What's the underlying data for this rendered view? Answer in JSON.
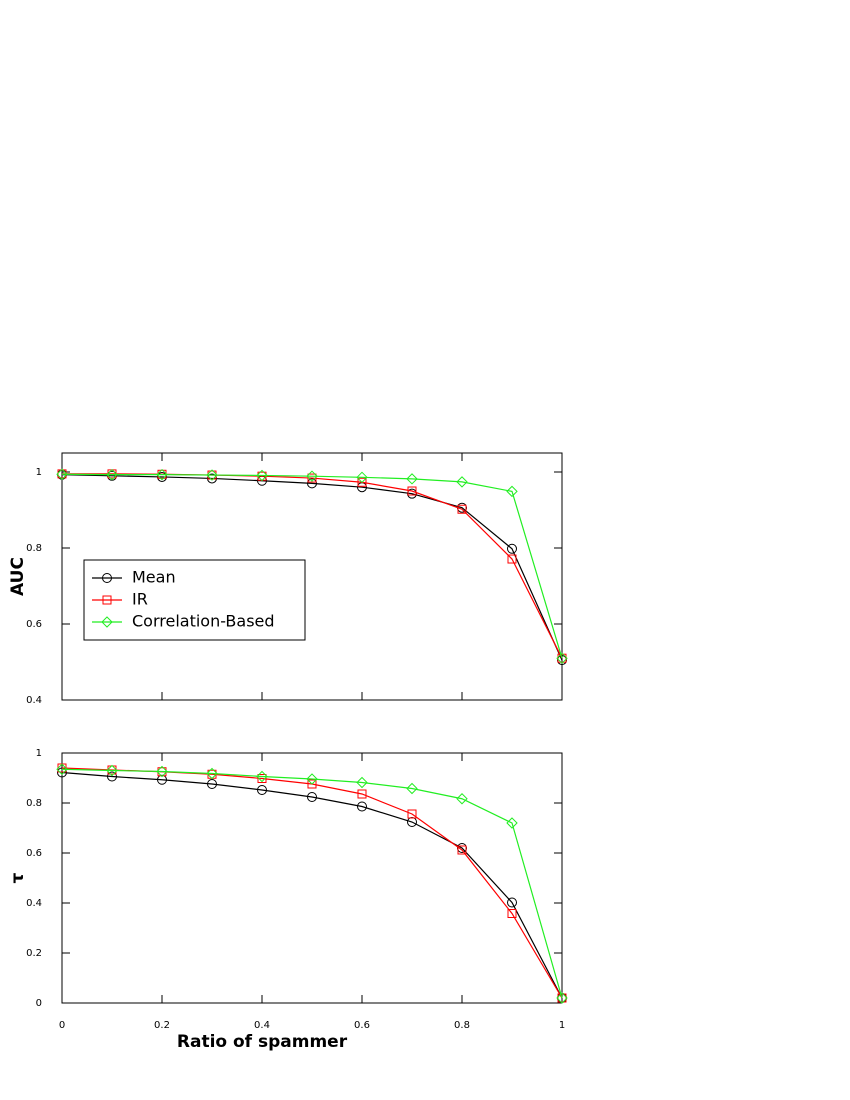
{
  "chart_data": [
    {
      "type": "line",
      "ylabel": "AUC",
      "x": [
        0,
        0.1,
        0.2,
        0.3,
        0.4,
        0.5,
        0.6,
        0.7,
        0.8,
        0.9,
        1
      ],
      "series": [
        {
          "name": "Mean",
          "color": "#000000",
          "marker": "circle",
          "values": [
            0.993,
            0.99,
            0.987,
            0.983,
            0.977,
            0.97,
            0.96,
            0.943,
            0.906,
            0.798,
            0.505
          ]
        },
        {
          "name": "IR",
          "color": "#ff0000",
          "marker": "square",
          "values": [
            0.995,
            0.995,
            0.994,
            0.992,
            0.989,
            0.984,
            0.973,
            0.95,
            0.902,
            0.771,
            0.51
          ]
        },
        {
          "name": "Correlation-Based",
          "color": "#22ee22",
          "marker": "diamond",
          "values": [
            0.994,
            0.993,
            0.993,
            0.992,
            0.991,
            0.989,
            0.986,
            0.982,
            0.974,
            0.949,
            0.51
          ]
        }
      ],
      "xlim": [
        0,
        1
      ],
      "xticks": [
        0,
        0.2,
        0.4,
        0.6,
        0.8,
        1
      ],
      "show_xtick_labels": false,
      "ylim": [
        0.4,
        1.05
      ],
      "yticks": [
        0.4,
        0.6,
        0.8,
        1
      ],
      "legend": "left"
    },
    {
      "type": "line",
      "ylabel": "τ",
      "xlabel": "Ratio of spammer",
      "x": [
        0,
        0.1,
        0.2,
        0.3,
        0.4,
        0.5,
        0.6,
        0.7,
        0.8,
        0.9,
        1
      ],
      "series": [
        {
          "name": "Mean",
          "color": "#000000",
          "marker": "circle",
          "values": [
            0.922,
            0.906,
            0.893,
            0.876,
            0.852,
            0.824,
            0.786,
            0.724,
            0.62,
            0.402,
            0.02
          ]
        },
        {
          "name": "IR",
          "color": "#ff0000",
          "marker": "square",
          "values": [
            0.94,
            0.932,
            0.925,
            0.915,
            0.898,
            0.876,
            0.836,
            0.756,
            0.612,
            0.358,
            0.02
          ]
        },
        {
          "name": "Correlation-Based",
          "color": "#22ee22",
          "marker": "diamond",
          "values": [
            0.935,
            0.93,
            0.926,
            0.918,
            0.906,
            0.896,
            0.882,
            0.858,
            0.817,
            0.72,
            0.02
          ]
        }
      ],
      "xlim": [
        0,
        1
      ],
      "xticks": [
        0,
        0.2,
        0.4,
        0.6,
        0.8,
        1
      ],
      "show_xtick_labels": true,
      "ylim": [
        0,
        1
      ],
      "yticks": [
        0,
        0.2,
        0.4,
        0.6,
        0.8,
        1
      ]
    }
  ]
}
